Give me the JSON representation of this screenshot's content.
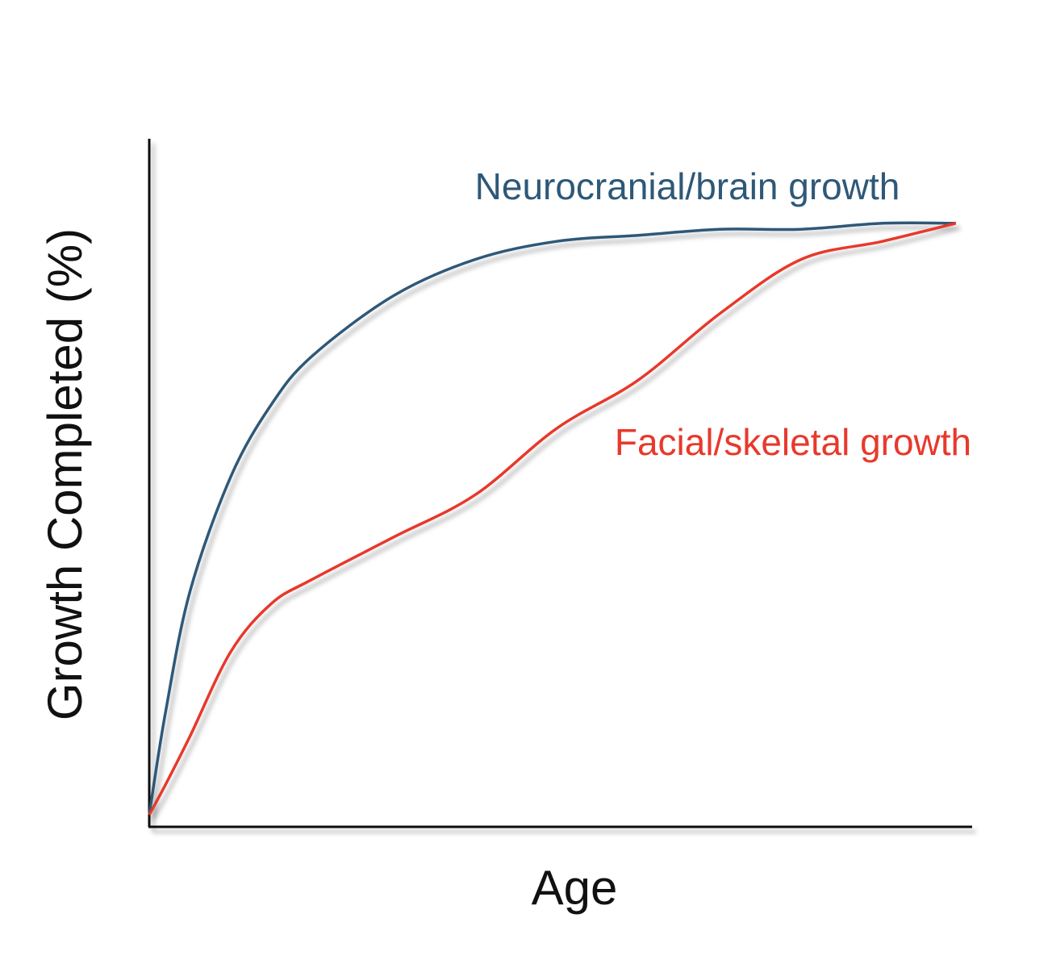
{
  "chart_data": {
    "type": "line",
    "x_label": "Age",
    "y_label": "Growth Completed (%)",
    "x": [
      0,
      2,
      5,
      10,
      15,
      20,
      30,
      40,
      50,
      60,
      70,
      80,
      90,
      99
    ],
    "xlim": [
      0,
      101
    ],
    "ylim": [
      0,
      114
    ],
    "grid": false,
    "series": [
      {
        "name": "Neurocranial/brain growth",
        "color": "#2e5878",
        "values": [
          2,
          19,
          39,
          58,
          70,
          78,
          88,
          94,
          97,
          98,
          99,
          99,
          100,
          100
        ]
      },
      {
        "name": "Facial/skeletal growth",
        "color": "#e8392c",
        "values": [
          2,
          7,
          15,
          29,
          37,
          41,
          48,
          55,
          66,
          74,
          85,
          94,
          97,
          100
        ]
      }
    ]
  }
}
